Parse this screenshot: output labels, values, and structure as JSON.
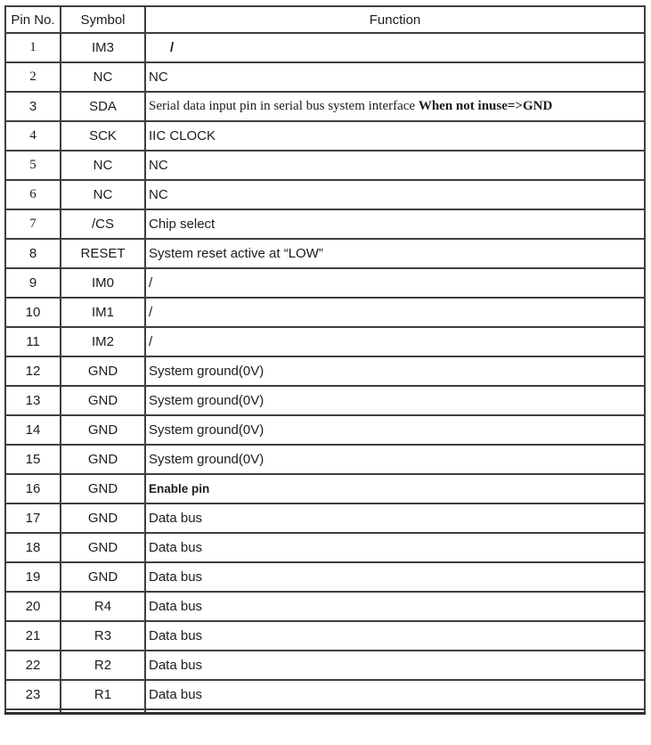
{
  "page": {
    "background": "#ffffff",
    "text_color": "#1c1c1c",
    "border_color": "#3e3e3e"
  },
  "table": {
    "headers": {
      "pin": "Pin No.",
      "symbol": "Symbol",
      "function": "Function"
    },
    "rows": [
      {
        "pin": "1",
        "pin_serif": true,
        "symbol": "IM3",
        "func": [
          {
            "text": "/",
            "bold": true
          }
        ],
        "func_class": "slash-indent"
      },
      {
        "pin": "2",
        "pin_serif": true,
        "symbol": "NC",
        "func": [
          {
            "text": "NC",
            "bold": false
          }
        ],
        "func_class": ""
      },
      {
        "pin": "3",
        "pin_serif": false,
        "symbol": "SDA",
        "func": [
          {
            "text": "Serial data input pin in serial bus system interface ",
            "bold": false
          },
          {
            "text": "When not inuse=>GND",
            "bold": true
          }
        ],
        "func_class": "serif"
      },
      {
        "pin": "4",
        "pin_serif": true,
        "symbol": "SCK",
        "func": [
          {
            "text": "IIC CLOCK",
            "bold": false
          }
        ],
        "func_class": ""
      },
      {
        "pin": "5",
        "pin_serif": true,
        "symbol": "NC",
        "func": [
          {
            "text": "NC",
            "bold": false
          }
        ],
        "func_class": ""
      },
      {
        "pin": "6",
        "pin_serif": true,
        "symbol": "NC",
        "func": [
          {
            "text": "NC",
            "bold": false
          }
        ],
        "func_class": ""
      },
      {
        "pin": "7",
        "pin_serif": true,
        "symbol": "/CS",
        "func": [
          {
            "text": "Chip select",
            "bold": false
          }
        ],
        "func_class": ""
      },
      {
        "pin": "8",
        "pin_serif": false,
        "symbol": "RESET",
        "func": [
          {
            "text": "System reset active at “LOW”",
            "bold": false
          }
        ],
        "func_class": ""
      },
      {
        "pin": "9",
        "pin_serif": false,
        "symbol": "IM0",
        "func": [
          {
            "text": "/",
            "bold": false
          }
        ],
        "func_class": ""
      },
      {
        "pin": "10",
        "pin_serif": false,
        "symbol": "IM1",
        "func": [
          {
            "text": "/",
            "bold": false
          }
        ],
        "func_class": ""
      },
      {
        "pin": "11",
        "pin_serif": false,
        "symbol": "IM2",
        "func": [
          {
            "text": "/",
            "bold": false
          }
        ],
        "func_class": ""
      },
      {
        "pin": "12",
        "pin_serif": false,
        "symbol": "GND",
        "func": [
          {
            "text": "System ground(0V)",
            "bold": false
          }
        ],
        "func_class": ""
      },
      {
        "pin": "13",
        "pin_serif": false,
        "symbol": "GND",
        "func": [
          {
            "text": "System ground(0V)",
            "bold": false
          }
        ],
        "func_class": ""
      },
      {
        "pin": "14",
        "pin_serif": false,
        "symbol": "GND",
        "func": [
          {
            "text": "System ground(0V)",
            "bold": false
          }
        ],
        "func_class": ""
      },
      {
        "pin": "15",
        "pin_serif": false,
        "symbol": "GND",
        "func": [
          {
            "text": "System ground(0V)",
            "bold": false
          }
        ],
        "func_class": ""
      },
      {
        "pin": "16",
        "pin_serif": false,
        "symbol": "GND",
        "func": [
          {
            "text": "Enable pin",
            "bold": true
          }
        ],
        "func_class": "bold-small"
      },
      {
        "pin": "17",
        "pin_serif": false,
        "symbol": "GND",
        "func": [
          {
            "text": "Data bus",
            "bold": false
          }
        ],
        "func_class": ""
      },
      {
        "pin": "18",
        "pin_serif": false,
        "symbol": "GND",
        "func": [
          {
            "text": "Data bus",
            "bold": false
          }
        ],
        "func_class": ""
      },
      {
        "pin": "19",
        "pin_serif": false,
        "symbol": "GND",
        "func": [
          {
            "text": "Data bus",
            "bold": false
          }
        ],
        "func_class": ""
      },
      {
        "pin": "20",
        "pin_serif": false,
        "symbol": "R4",
        "func": [
          {
            "text": "Data bus",
            "bold": false
          }
        ],
        "func_class": ""
      },
      {
        "pin": "21",
        "pin_serif": false,
        "symbol": "R3",
        "func": [
          {
            "text": "Data bus",
            "bold": false
          }
        ],
        "func_class": ""
      },
      {
        "pin": "22",
        "pin_serif": false,
        "symbol": "R2",
        "func": [
          {
            "text": "Data bus",
            "bold": false
          }
        ],
        "func_class": ""
      },
      {
        "pin": "23",
        "pin_serif": false,
        "symbol": "R1",
        "func": [
          {
            "text": "Data bus",
            "bold": false
          }
        ],
        "func_class": ""
      }
    ]
  }
}
